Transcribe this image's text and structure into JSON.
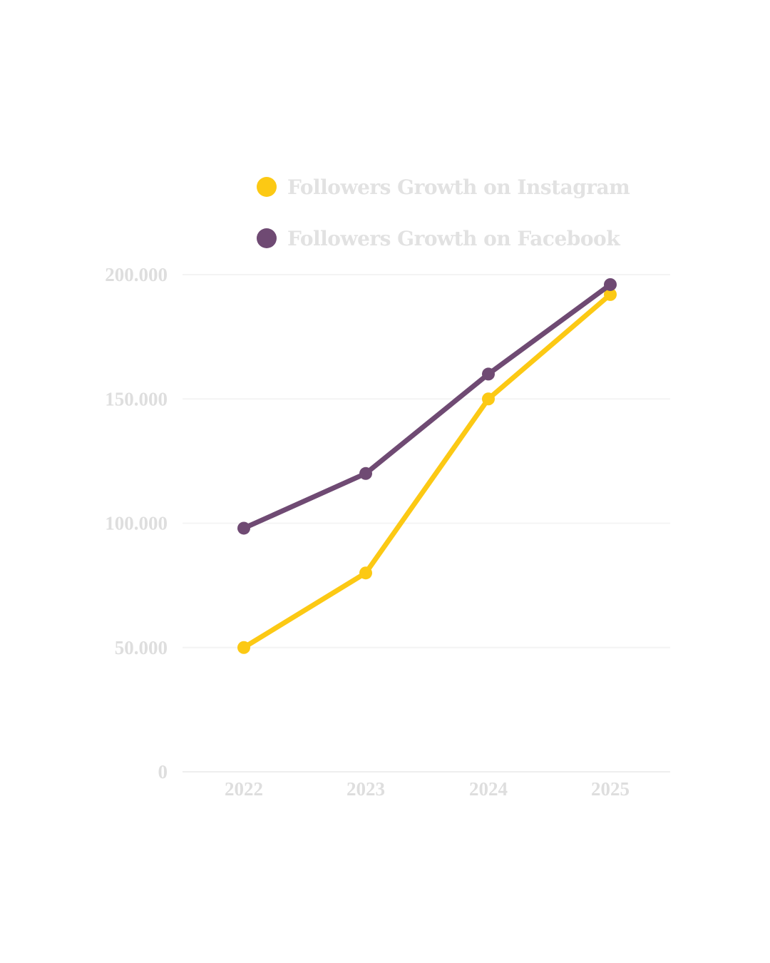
{
  "chart_data": {
    "type": "line",
    "title": "",
    "xlabel": "",
    "ylabel": "",
    "categories": [
      "2022",
      "2023",
      "2024",
      "2025"
    ],
    "y_ticks": [
      {
        "value": 0,
        "label": "0"
      },
      {
        "value": 50000,
        "label": "50.000"
      },
      {
        "value": 100000,
        "label": "100.000"
      },
      {
        "value": 150000,
        "label": "150.000"
      },
      {
        "value": 200000,
        "label": "200.000"
      }
    ],
    "ylim": [
      0,
      200000
    ],
    "grid": true,
    "legend_position": "top",
    "series": [
      {
        "name": "Followers Growth on Instagram",
        "color": "#FCC914",
        "values": [
          50000,
          80000,
          150000,
          192000
        ]
      },
      {
        "name": "Followers Growth on Facebook",
        "color": "#6F4A73",
        "values": [
          98000,
          120000,
          160000,
          196000
        ]
      }
    ]
  },
  "colors": {
    "background": "#FFFFFF",
    "text": "#DEDEDE",
    "grid": "#F4F4F4"
  }
}
